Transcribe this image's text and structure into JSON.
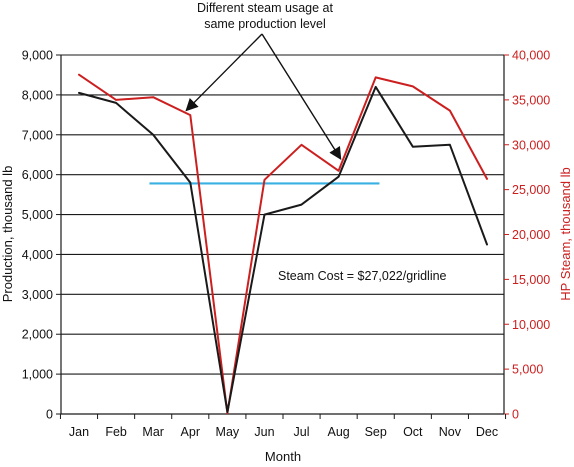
{
  "chart_data": {
    "type": "line",
    "title": "",
    "xlabel": "Month",
    "ylabel_left": "Production, thousand lb",
    "ylabel_right": "HP Steam, thousand lb",
    "categories": [
      "Jan",
      "Feb",
      "Mar",
      "Apr",
      "May",
      "Jun",
      "Jul",
      "Aug",
      "Sep",
      "Oct",
      "Nov",
      "Dec"
    ],
    "ylim_left": [
      0,
      9000
    ],
    "ylim_right": [
      0,
      40000
    ],
    "left_ticks": [
      0,
      1000,
      2000,
      3000,
      4000,
      5000,
      6000,
      7000,
      8000,
      9000
    ],
    "left_tick_labels": [
      "0",
      "1,000",
      "2,000",
      "3,000",
      "4,000",
      "5,000",
      "6,000",
      "7,000",
      "8,000",
      "9,000"
    ],
    "right_ticks": [
      0,
      5000,
      10000,
      15000,
      20000,
      25000,
      30000,
      35000,
      40000
    ],
    "right_tick_labels": [
      "0",
      "5,000",
      "10,000",
      "15,000",
      "20,000",
      "25,000",
      "30,000",
      "35,000",
      "40,000"
    ],
    "grid": true,
    "series": [
      {
        "axis": "left",
        "color": "#1a1a1a",
        "values": [
          8050,
          7800,
          7000,
          5800,
          50,
          5000,
          5250,
          5950,
          8200,
          6700,
          6750,
          4250
        ]
      },
      {
        "axis": "right",
        "color": "#cc1f1f",
        "values": [
          37800,
          35000,
          35300,
          33300,
          100,
          26100,
          30000,
          27100,
          37500,
          36500,
          33800,
          26200
        ]
      }
    ],
    "reference_line": {
      "axis": "left",
      "value": 5780,
      "from_x": 1.9,
      "to_x": 8.1,
      "color": "#3ab0e2"
    },
    "annotations": [
      {
        "id": "steam-usage-note",
        "lines": [
          "Different steam usage at",
          "same production level"
        ]
      },
      {
        "id": "steam-cost-note",
        "text": "Steam Cost = $27,022/gridline"
      }
    ],
    "arrow_targets": [
      {
        "x_index": 3,
        "axis": "right",
        "value": 33600
      },
      {
        "x_index": 7,
        "axis": "right",
        "value": 28200
      }
    ]
  }
}
